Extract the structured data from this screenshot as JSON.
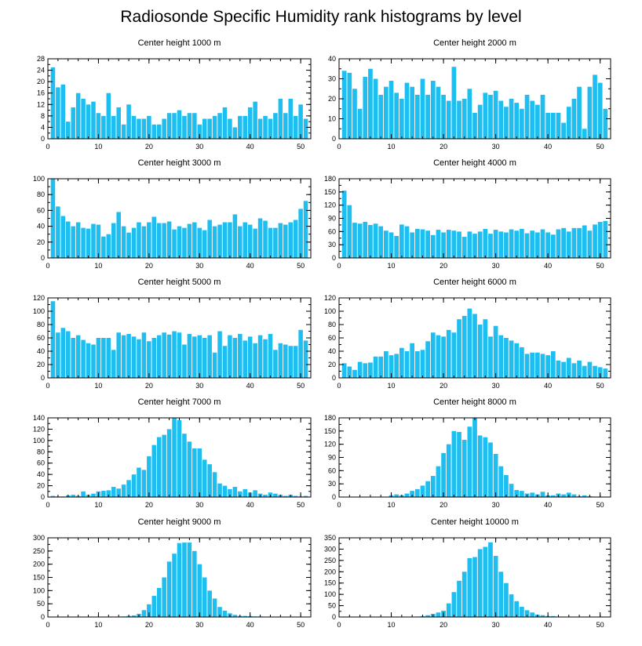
{
  "title": "Radiosonde Specific Humidity rank histograms by level",
  "colors": {
    "bar": "#1EBFF0",
    "axis": "#000000"
  },
  "chart_data": [
    {
      "type": "bar",
      "title": "Center height 1000 m",
      "xlabel": "",
      "ylabel": "",
      "xlim": [
        0,
        52
      ],
      "ylim": [
        0,
        28
      ],
      "xticks": [
        0,
        10,
        20,
        30,
        40,
        50
      ],
      "yticks": [
        0,
        4,
        8,
        12,
        16,
        20,
        24,
        28
      ],
      "x": [
        1,
        2,
        3,
        4,
        5,
        6,
        7,
        8,
        9,
        10,
        11,
        12,
        13,
        14,
        15,
        16,
        17,
        18,
        19,
        20,
        21,
        22,
        23,
        24,
        25,
        26,
        27,
        28,
        29,
        30,
        31,
        32,
        33,
        34,
        35,
        36,
        37,
        38,
        39,
        40,
        41,
        42,
        43,
        44,
        45,
        46,
        47,
        48,
        49,
        50,
        51
      ],
      "values": [
        25,
        18,
        19,
        6,
        11,
        16,
        14,
        12,
        13,
        9,
        8,
        16,
        8,
        11,
        5,
        12,
        8,
        7,
        7,
        8,
        5,
        5,
        7,
        9,
        9,
        10,
        8,
        9,
        9,
        5,
        7,
        7,
        8,
        9,
        11,
        7,
        4,
        8,
        8,
        11,
        13,
        7,
        8,
        7,
        9,
        14,
        9,
        14,
        8,
        12,
        7
      ]
    },
    {
      "type": "bar",
      "title": "Center height 2000 m",
      "xlabel": "",
      "ylabel": "",
      "xlim": [
        0,
        52
      ],
      "ylim": [
        0,
        40
      ],
      "xticks": [
        0,
        10,
        20,
        30,
        40,
        50
      ],
      "yticks": [
        0,
        10,
        20,
        30,
        40
      ],
      "x": [
        1,
        2,
        3,
        4,
        5,
        6,
        7,
        8,
        9,
        10,
        11,
        12,
        13,
        14,
        15,
        16,
        17,
        18,
        19,
        20,
        21,
        22,
        23,
        24,
        25,
        26,
        27,
        28,
        29,
        30,
        31,
        32,
        33,
        34,
        35,
        36,
        37,
        38,
        39,
        40,
        41,
        42,
        43,
        44,
        45,
        46,
        47,
        48,
        49,
        50,
        51
      ],
      "values": [
        34,
        33,
        25,
        15,
        31,
        35,
        30,
        22,
        26,
        29,
        23,
        20,
        28,
        26,
        22,
        30,
        22,
        29,
        26,
        22,
        19,
        36,
        19,
        20,
        25,
        13,
        17,
        23,
        22,
        24,
        19,
        16,
        20,
        18,
        15,
        22,
        19,
        17,
        22,
        13,
        13,
        13,
        8,
        16,
        20,
        26,
        5,
        26,
        32,
        28,
        15
      ]
    },
    {
      "type": "bar",
      "title": "Center height 3000 m",
      "xlabel": "",
      "ylabel": "",
      "xlim": [
        0,
        52
      ],
      "ylim": [
        0,
        100
      ],
      "xticks": [
        0,
        10,
        20,
        30,
        40,
        50
      ],
      "yticks": [
        0,
        20,
        40,
        60,
        80,
        100
      ],
      "x": [
        1,
        2,
        3,
        4,
        5,
        6,
        7,
        8,
        9,
        10,
        11,
        12,
        13,
        14,
        15,
        16,
        17,
        18,
        19,
        20,
        21,
        22,
        23,
        24,
        25,
        26,
        27,
        28,
        29,
        30,
        31,
        32,
        33,
        34,
        35,
        36,
        37,
        38,
        39,
        40,
        41,
        42,
        43,
        44,
        45,
        46,
        47,
        48,
        49,
        50,
        51
      ],
      "values": [
        100,
        65,
        53,
        46,
        40,
        45,
        38,
        37,
        43,
        42,
        27,
        30,
        44,
        58,
        40,
        32,
        38,
        45,
        40,
        45,
        52,
        44,
        44,
        46,
        36,
        40,
        38,
        43,
        45,
        38,
        35,
        48,
        40,
        42,
        45,
        45,
        55,
        40,
        45,
        42,
        37,
        50,
        47,
        38,
        38,
        44,
        42,
        45,
        48,
        62,
        72
      ]
    },
    {
      "type": "bar",
      "title": "Center height 4000 m",
      "xlabel": "",
      "ylabel": "",
      "xlim": [
        0,
        52
      ],
      "ylim": [
        0,
        180
      ],
      "xticks": [
        0,
        10,
        20,
        30,
        40,
        50
      ],
      "yticks": [
        0,
        30,
        60,
        90,
        120,
        150,
        180
      ],
      "x": [
        1,
        2,
        3,
        4,
        5,
        6,
        7,
        8,
        9,
        10,
        11,
        12,
        13,
        14,
        15,
        16,
        17,
        18,
        19,
        20,
        21,
        22,
        23,
        24,
        25,
        26,
        27,
        28,
        29,
        30,
        31,
        32,
        33,
        34,
        35,
        36,
        37,
        38,
        39,
        40,
        41,
        42,
        43,
        44,
        45,
        46,
        47,
        48,
        49,
        50,
        51
      ],
      "values": [
        153,
        120,
        80,
        78,
        82,
        75,
        78,
        72,
        62,
        58,
        50,
        76,
        72,
        58,
        66,
        65,
        62,
        52,
        64,
        58,
        64,
        62,
        60,
        48,
        60,
        55,
        60,
        66,
        55,
        64,
        60,
        58,
        65,
        62,
        66,
        56,
        62,
        58,
        65,
        58,
        53,
        65,
        68,
        60,
        68,
        68,
        74,
        62,
        76,
        82,
        84
      ]
    },
    {
      "type": "bar",
      "title": "Center height 5000 m",
      "xlabel": "",
      "ylabel": "",
      "xlim": [
        0,
        52
      ],
      "ylim": [
        0,
        120
      ],
      "xticks": [
        0,
        10,
        20,
        30,
        40,
        50
      ],
      "yticks": [
        0,
        20,
        40,
        60,
        80,
        100,
        120
      ],
      "x": [
        1,
        2,
        3,
        4,
        5,
        6,
        7,
        8,
        9,
        10,
        11,
        12,
        13,
        14,
        15,
        16,
        17,
        18,
        19,
        20,
        21,
        22,
        23,
        24,
        25,
        26,
        27,
        28,
        29,
        30,
        31,
        32,
        33,
        34,
        35,
        36,
        37,
        38,
        39,
        40,
        41,
        42,
        43,
        44,
        45,
        46,
        47,
        48,
        49,
        50,
        51
      ],
      "values": [
        115,
        68,
        75,
        70,
        60,
        64,
        57,
        52,
        50,
        60,
        60,
        60,
        42,
        68,
        64,
        66,
        62,
        58,
        68,
        55,
        60,
        64,
        68,
        65,
        70,
        68,
        50,
        66,
        62,
        64,
        60,
        64,
        38,
        70,
        48,
        64,
        60,
        66,
        56,
        62,
        52,
        64,
        58,
        66,
        42,
        52,
        50,
        48,
        48,
        72,
        56
      ]
    },
    {
      "type": "bar",
      "title": "Center height 6000 m",
      "xlabel": "",
      "ylabel": "",
      "xlim": [
        0,
        52
      ],
      "ylim": [
        0,
        120
      ],
      "xticks": [
        0,
        10,
        20,
        30,
        40,
        50
      ],
      "yticks": [
        0,
        20,
        40,
        60,
        80,
        100,
        120
      ],
      "x": [
        1,
        2,
        3,
        4,
        5,
        6,
        7,
        8,
        9,
        10,
        11,
        12,
        13,
        14,
        15,
        16,
        17,
        18,
        19,
        20,
        21,
        22,
        23,
        24,
        25,
        26,
        27,
        28,
        29,
        30,
        31,
        32,
        33,
        34,
        35,
        36,
        37,
        38,
        39,
        40,
        41,
        42,
        43,
        44,
        45,
        46,
        47,
        48,
        49,
        50,
        51
      ],
      "values": [
        22,
        17,
        12,
        24,
        22,
        23,
        32,
        32,
        40,
        34,
        36,
        45,
        40,
        52,
        40,
        42,
        55,
        68,
        64,
        62,
        72,
        68,
        88,
        93,
        104,
        96,
        80,
        88,
        62,
        78,
        64,
        60,
        56,
        52,
        46,
        36,
        38,
        38,
        36,
        34,
        40,
        26,
        24,
        30,
        22,
        26,
        18,
        24,
        18,
        16,
        14
      ]
    },
    {
      "type": "bar",
      "title": "Center height 7000 m",
      "xlabel": "",
      "ylabel": "",
      "xlim": [
        0,
        52
      ],
      "ylim": [
        0,
        140
      ],
      "xticks": [
        0,
        10,
        20,
        30,
        40,
        50
      ],
      "yticks": [
        0,
        20,
        40,
        60,
        80,
        100,
        120,
        140
      ],
      "x": [
        1,
        2,
        3,
        4,
        5,
        6,
        7,
        8,
        9,
        10,
        11,
        12,
        13,
        14,
        15,
        16,
        17,
        18,
        19,
        20,
        21,
        22,
        23,
        24,
        25,
        26,
        27,
        28,
        29,
        30,
        31,
        32,
        33,
        34,
        35,
        36,
        37,
        38,
        39,
        40,
        41,
        42,
        43,
        44,
        45,
        46,
        47,
        48,
        49,
        50,
        51
      ],
      "values": [
        2,
        1,
        1,
        3,
        4,
        2,
        10,
        4,
        6,
        10,
        11,
        12,
        18,
        15,
        22,
        30,
        40,
        52,
        48,
        72,
        92,
        106,
        110,
        120,
        140,
        136,
        112,
        98,
        86,
        86,
        66,
        58,
        44,
        24,
        20,
        14,
        18,
        10,
        14,
        8,
        12,
        6,
        4,
        8,
        6,
        4,
        2,
        4,
        2,
        1,
        2
      ]
    },
    {
      "type": "bar",
      "title": "Center height 8000 m",
      "xlabel": "",
      "ylabel": "",
      "xlim": [
        0,
        52
      ],
      "ylim": [
        0,
        180
      ],
      "xticks": [
        0,
        10,
        20,
        30,
        40,
        50
      ],
      "yticks": [
        0,
        30,
        60,
        90,
        120,
        150,
        180
      ],
      "x": [
        1,
        2,
        3,
        4,
        5,
        6,
        7,
        8,
        9,
        10,
        11,
        12,
        13,
        14,
        15,
        16,
        17,
        18,
        19,
        20,
        21,
        22,
        23,
        24,
        25,
        26,
        27,
        28,
        29,
        30,
        31,
        32,
        33,
        34,
        35,
        36,
        37,
        38,
        39,
        40,
        41,
        42,
        43,
        44,
        45,
        46,
        47,
        48,
        49,
        50,
        51
      ],
      "values": [
        0,
        0,
        0,
        0,
        0,
        0,
        0,
        0,
        0,
        4,
        6,
        4,
        8,
        14,
        18,
        26,
        36,
        48,
        70,
        100,
        120,
        150,
        148,
        130,
        160,
        180,
        140,
        136,
        124,
        98,
        70,
        50,
        30,
        16,
        14,
        8,
        10,
        6,
        12,
        4,
        4,
        8,
        6,
        10,
        6,
        2,
        4,
        2,
        1,
        1,
        1
      ]
    },
    {
      "type": "bar",
      "title": "Center height 9000 m",
      "xlabel": "",
      "ylabel": "",
      "xlim": [
        0,
        52
      ],
      "ylim": [
        0,
        300
      ],
      "xticks": [
        0,
        10,
        20,
        30,
        40,
        50
      ],
      "yticks": [
        0,
        50,
        100,
        150,
        200,
        250,
        300
      ],
      "x": [
        1,
        2,
        3,
        4,
        5,
        6,
        7,
        8,
        9,
        10,
        11,
        12,
        13,
        14,
        15,
        16,
        17,
        18,
        19,
        20,
        21,
        22,
        23,
        24,
        25,
        26,
        27,
        28,
        29,
        30,
        31,
        32,
        33,
        34,
        35,
        36,
        37,
        38,
        39,
        40,
        41,
        42,
        43,
        44,
        45,
        46,
        47,
        48,
        49,
        50,
        51
      ],
      "values": [
        0,
        0,
        0,
        0,
        0,
        0,
        0,
        0,
        0,
        0,
        0,
        0,
        0,
        0,
        2,
        4,
        6,
        12,
        26,
        48,
        80,
        110,
        150,
        210,
        240,
        280,
        282,
        282,
        250,
        200,
        150,
        100,
        70,
        38,
        24,
        14,
        8,
        4,
        4,
        3,
        2,
        2,
        1,
        0,
        0,
        1,
        0,
        1,
        0,
        0,
        0
      ]
    },
    {
      "type": "bar",
      "title": "Center height 10000 m",
      "xlabel": "",
      "ylabel": "",
      "xlim": [
        0,
        52
      ],
      "ylim": [
        0,
        350
      ],
      "xticks": [
        0,
        10,
        20,
        30,
        40,
        50
      ],
      "yticks": [
        0,
        50,
        100,
        150,
        200,
        250,
        300,
        350
      ],
      "x": [
        1,
        2,
        3,
        4,
        5,
        6,
        7,
        8,
        9,
        10,
        11,
        12,
        13,
        14,
        15,
        16,
        17,
        18,
        19,
        20,
        21,
        22,
        23,
        24,
        25,
        26,
        27,
        28,
        29,
        30,
        31,
        32,
        33,
        34,
        35,
        36,
        37,
        38,
        39,
        40,
        41,
        42,
        43,
        44,
        45,
        46,
        47,
        48,
        49,
        50,
        51
      ],
      "values": [
        0,
        0,
        0,
        0,
        0,
        0,
        0,
        0,
        0,
        0,
        0,
        0,
        0,
        0,
        2,
        4,
        8,
        14,
        20,
        28,
        60,
        110,
        160,
        200,
        260,
        265,
        300,
        310,
        330,
        270,
        200,
        150,
        100,
        70,
        45,
        30,
        20,
        10,
        8,
        4,
        4,
        2,
        1,
        0,
        0,
        0,
        0,
        0,
        0,
        0,
        0
      ]
    }
  ]
}
